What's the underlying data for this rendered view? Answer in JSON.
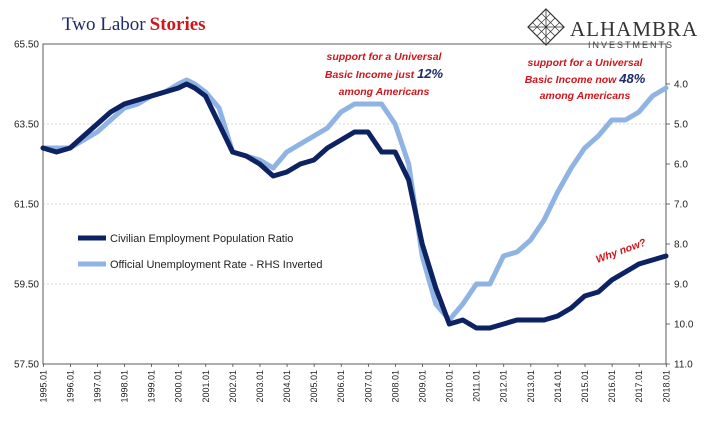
{
  "title": {
    "part1": "Two Labor",
    "part2": "Stories"
  },
  "logo": {
    "name": "ALHAMBRA",
    "sub": "INVESTMENTS",
    "icon": "diamond-lattice-icon"
  },
  "colors": {
    "dark_series": "#0d2262",
    "light_series": "#8fb4e3",
    "annotation": "#d0161b",
    "title_dark": "#1f2a6b"
  },
  "annotations": {
    "a1": {
      "line1": "support for a Universal",
      "line2_pre": "Basic Income just ",
      "line2_num": "12%",
      "line3": "among Americans"
    },
    "a2": {
      "line1": "support for a Universal",
      "line2_pre": "Basic Income now ",
      "line2_num": "48%",
      "line3": "among Americans"
    },
    "why": "Why now?"
  },
  "chart_data": {
    "type": "line",
    "title": "Two Labor Stories",
    "grid": "horizontal",
    "legend_position": "left",
    "x_ticks": [
      "1995.01",
      "1996.01",
      "1997.01",
      "1998.01",
      "1999.01",
      "2000.01",
      "2001.01",
      "2002.01",
      "2003.01",
      "2004.01",
      "2005.01",
      "2006.01",
      "2007.01",
      "2008.01",
      "2009.01",
      "2010.01",
      "2011.01",
      "2012.01",
      "2013.01",
      "2014.01",
      "2015.01",
      "2016.01",
      "2017.01",
      "2018.01"
    ],
    "y_left": {
      "ticks": [
        "57.50",
        "59.50",
        "61.50",
        "63.50",
        "65.50"
      ],
      "range": [
        57.5,
        65.5
      ]
    },
    "y_right": {
      "ticks": [
        "4.0",
        "5.0",
        "6.0",
        "7.0",
        "8.0",
        "9.0",
        "10.0",
        "11.0"
      ],
      "range": [
        3.0,
        11.0
      ],
      "inverted": true
    },
    "series": [
      {
        "name": "Civilian Employment Population Ratio",
        "axis": "left",
        "x": [
          1995.0,
          1995.5,
          1996.0,
          1996.5,
          1997.0,
          1997.5,
          1998.0,
          1998.5,
          1999.0,
          1999.5,
          2000.0,
          2000.3,
          2000.6,
          2001.0,
          2001.5,
          2002.0,
          2002.5,
          2003.0,
          2003.5,
          2004.0,
          2004.5,
          2005.0,
          2005.5,
          2006.0,
          2006.5,
          2007.0,
          2007.5,
          2008.0,
          2008.5,
          2009.0,
          2009.5,
          2010.0,
          2010.5,
          2011.0,
          2011.5,
          2012.0,
          2012.5,
          2013.0,
          2013.5,
          2014.0,
          2014.5,
          2015.0,
          2015.5,
          2016.0,
          2016.5,
          2017.0,
          2017.5,
          2018.0
        ],
        "y": [
          62.9,
          62.8,
          62.9,
          63.2,
          63.5,
          63.8,
          64.0,
          64.1,
          64.2,
          64.3,
          64.4,
          64.5,
          64.4,
          64.2,
          63.5,
          62.8,
          62.7,
          62.5,
          62.2,
          62.3,
          62.5,
          62.6,
          62.9,
          63.1,
          63.3,
          63.3,
          62.8,
          62.8,
          62.1,
          60.5,
          59.4,
          58.5,
          58.6,
          58.4,
          58.4,
          58.5,
          58.6,
          58.6,
          58.6,
          58.7,
          58.9,
          59.2,
          59.3,
          59.6,
          59.8,
          60.0,
          60.1,
          60.2
        ]
      },
      {
        "name": "Official Unemployment Rate - RHS Inverted",
        "axis": "right",
        "x": [
          1995.0,
          1995.5,
          1996.0,
          1996.5,
          1997.0,
          1997.5,
          1998.0,
          1998.5,
          1999.0,
          1999.5,
          2000.0,
          2000.3,
          2000.6,
          2001.0,
          2001.5,
          2002.0,
          2002.5,
          2003.0,
          2003.5,
          2004.0,
          2004.5,
          2005.0,
          2005.5,
          2006.0,
          2006.5,
          2007.0,
          2007.5,
          2008.0,
          2008.5,
          2009.0,
          2009.5,
          2010.0,
          2010.5,
          2011.0,
          2011.5,
          2012.0,
          2012.5,
          2013.0,
          2013.5,
          2014.0,
          2014.5,
          2015.0,
          2015.5,
          2016.0,
          2016.5,
          2017.0,
          2017.5,
          2018.0
        ],
        "y": [
          5.6,
          5.6,
          5.6,
          5.4,
          5.2,
          4.9,
          4.6,
          4.5,
          4.3,
          4.2,
          4.0,
          3.9,
          4.0,
          4.2,
          4.6,
          5.7,
          5.8,
          5.9,
          6.1,
          5.7,
          5.5,
          5.3,
          5.1,
          4.7,
          4.5,
          4.5,
          4.5,
          5.0,
          6.0,
          8.3,
          9.5,
          9.9,
          9.5,
          9.0,
          9.0,
          8.3,
          8.2,
          7.9,
          7.4,
          6.7,
          6.1,
          5.6,
          5.3,
          4.9,
          4.9,
          4.7,
          4.3,
          4.1
        ]
      }
    ]
  }
}
